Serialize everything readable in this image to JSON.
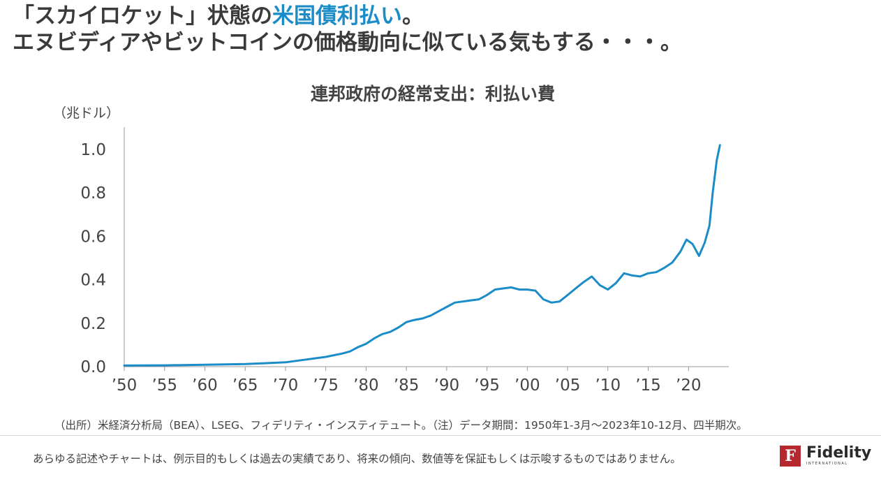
{
  "headline": {
    "line1_before": "「スカイロケット」状態の",
    "line1_highlight": "米国債利払い",
    "line1_after": "。",
    "line2": "エヌビディアやビットコインの価格動向に似ている気もする・・・。"
  },
  "chart_data": {
    "type": "line",
    "title": "連邦政府の経常支出：利払い費",
    "unit_label": "（兆ドル）",
    "ylim": [
      0,
      1.1
    ],
    "yticks": [
      0.0,
      0.2,
      0.4,
      0.6,
      0.8,
      1.0
    ],
    "ytick_labels": [
      "0.0",
      "0.2",
      "0.4",
      "0.6",
      "0.8",
      "1.0"
    ],
    "xlim": [
      1950,
      2025
    ],
    "xticks": [
      1950,
      1955,
      1960,
      1965,
      1970,
      1975,
      1980,
      1985,
      1990,
      1995,
      2000,
      2005,
      2010,
      2015,
      2020
    ],
    "xtick_labels": [
      "’50",
      "’55",
      "’60",
      "’65",
      "’70",
      "’75",
      "’80",
      "’85",
      "’90",
      "’95",
      "’00",
      "’05",
      "’10",
      "’15",
      "’20"
    ],
    "color": "#1a8cc8",
    "series": [
      {
        "name": "利払い費",
        "x": [
          1950,
          1955,
          1960,
          1965,
          1970,
          1972,
          1975,
          1977,
          1978,
          1979,
          1980,
          1981,
          1982,
          1983,
          1984,
          1985,
          1986,
          1987,
          1988,
          1989,
          1990,
          1991,
          1992,
          1993,
          1994,
          1995,
          1996,
          1997,
          1998,
          1999,
          2000,
          2001,
          2002,
          2003,
          2004,
          2005,
          2006,
          2007,
          2008,
          2009,
          2010,
          2011,
          2012,
          2013,
          2014,
          2015,
          2016,
          2017,
          2018,
          2019,
          2019.75,
          2020.5,
          2021.3,
          2022,
          2022.6,
          2023,
          2023.5,
          2023.9
        ],
        "values": [
          0.005,
          0.006,
          0.009,
          0.012,
          0.02,
          0.03,
          0.045,
          0.06,
          0.07,
          0.09,
          0.105,
          0.13,
          0.15,
          0.16,
          0.18,
          0.205,
          0.215,
          0.222,
          0.235,
          0.255,
          0.275,
          0.295,
          0.3,
          0.305,
          0.31,
          0.33,
          0.355,
          0.36,
          0.365,
          0.355,
          0.355,
          0.35,
          0.31,
          0.295,
          0.3,
          0.33,
          0.36,
          0.39,
          0.415,
          0.375,
          0.355,
          0.385,
          0.43,
          0.42,
          0.415,
          0.43,
          0.435,
          0.455,
          0.48,
          0.53,
          0.585,
          0.565,
          0.51,
          0.57,
          0.65,
          0.8,
          0.95,
          1.02
        ]
      }
    ]
  },
  "footer": {
    "source": "（出所）米経済分析局（BEA）、LSEG、フィデリティ・インスティテュート。（注）データ期間：1950年1-3月～2023年10-12月、四半期次。",
    "disclaimer": "あらゆる記述やチャートは、例示目的もしくは過去の実績であり、将来の傾向、数値等を保証もしくは示唆するものではありません。"
  },
  "brand": {
    "name": "Fidelity",
    "sub": "INTERNATIONAL",
    "mark": "F",
    "color": "#b5282e"
  }
}
